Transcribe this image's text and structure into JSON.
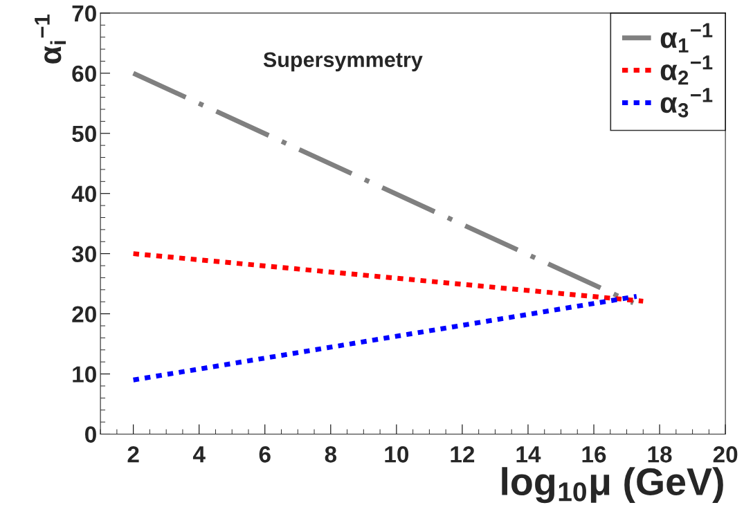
{
  "chart_data": {
    "type": "line",
    "xlabel": "log$_{10}$μ (GeV)",
    "ylabel": "α$_{i}$$^{−1}$",
    "annotations": [
      "Supersymmetry"
    ],
    "series": [
      {
        "name": "α$_{1}$$^{−1}$",
        "color": "#808080",
        "line_style": "dashed",
        "x": [
          2,
          17.2
        ],
        "values": [
          60,
          21.8
        ]
      },
      {
        "name": "α$_{2}$$^{−1}$",
        "color": "#ff0000",
        "line_style": "dotted",
        "x": [
          2,
          17.5
        ],
        "values": [
          30,
          22.1
        ]
      },
      {
        "name": "α$_{3}$$^{−1}$",
        "color": "#0000ff",
        "line_style": "dotted",
        "x": [
          2,
          17.3
        ],
        "values": [
          9,
          22.9
        ]
      }
    ],
    "xlim": [
      1,
      20
    ],
    "xticks": [
      2,
      4,
      6,
      8,
      10,
      12,
      14,
      16,
      18,
      20
    ],
    "ylim": [
      0,
      70
    ],
    "yticks": [
      0,
      10,
      20,
      30,
      40,
      50,
      60,
      70
    ],
    "grid": false,
    "legend": "top right",
    "marker": "none"
  }
}
